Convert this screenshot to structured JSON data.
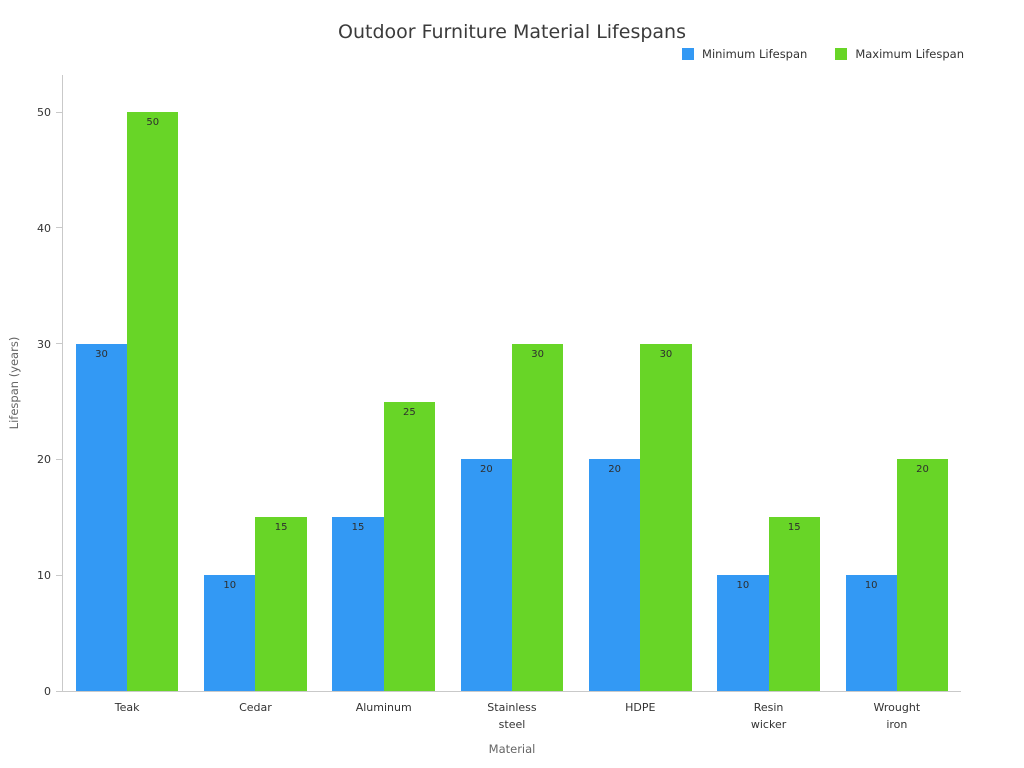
{
  "title": "Outdoor Furniture Material Lifespans",
  "chart_data": {
    "type": "bar",
    "title": "Outdoor Furniture Material Lifespans",
    "categories": [
      "Teak",
      "Cedar",
      "Aluminum",
      "Stainless steel",
      "HDPE",
      "Resin wicker",
      "Wrought iron"
    ],
    "series": [
      {
        "name": "Minimum Lifespan",
        "color": "#3399f4",
        "values": [
          30,
          10,
          15,
          20,
          20,
          10,
          10
        ]
      },
      {
        "name": "Maximum Lifespan",
        "color": "#68d527",
        "values": [
          50,
          15,
          25,
          30,
          30,
          15,
          20
        ]
      }
    ],
    "xlabel": "Material",
    "ylabel": "Lifespan (years)",
    "ylim": [
      0,
      50
    ],
    "yticks": [
      0,
      10,
      20,
      30,
      40,
      50
    ],
    "grid": false,
    "legend_position": "top-right",
    "bar_value_labels": true
  }
}
